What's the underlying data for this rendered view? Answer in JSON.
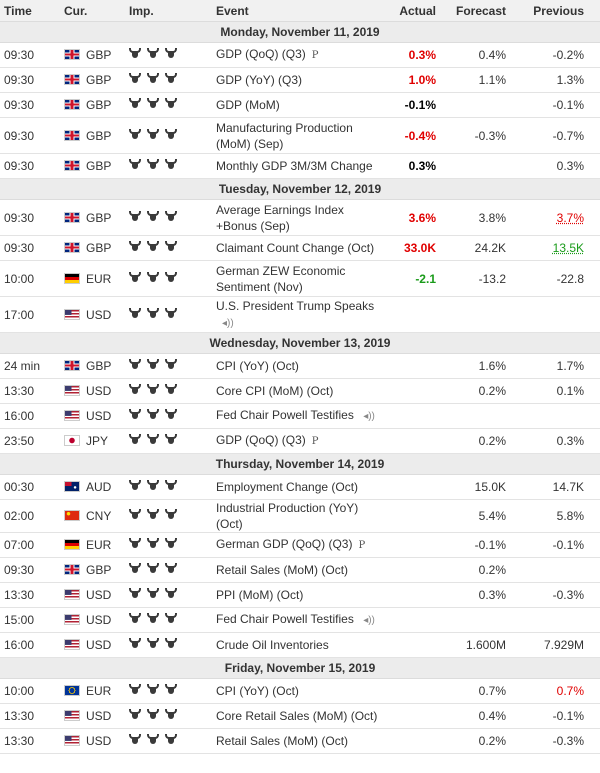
{
  "headers": {
    "time": "Time",
    "cur": "Cur.",
    "imp": "Imp.",
    "event": "Event",
    "actual": "Actual",
    "forecast": "Forecast",
    "previous": "Previous"
  },
  "days": [
    {
      "label": "Monday, November 11, 2019",
      "rows": [
        {
          "time": "09:30",
          "flag": "gb",
          "cur": "GBP",
          "event": "GDP (QoQ) (Q3)",
          "marker": "P",
          "actual": "0.3%",
          "actual_color": "red",
          "forecast": "0.4%",
          "previous": "-0.2%",
          "prev_style": ""
        },
        {
          "time": "09:30",
          "flag": "gb",
          "cur": "GBP",
          "event": "GDP (YoY) (Q3)",
          "marker": "",
          "actual": "1.0%",
          "actual_color": "red",
          "forecast": "1.1%",
          "previous": "1.3%",
          "prev_style": ""
        },
        {
          "time": "09:30",
          "flag": "gb",
          "cur": "GBP",
          "event": "GDP (MoM)",
          "marker": "",
          "actual": "-0.1%",
          "actual_color": "black",
          "forecast": "",
          "previous": "-0.1%",
          "prev_style": ""
        },
        {
          "time": "09:30",
          "flag": "gb",
          "cur": "GBP",
          "event": "Manufacturing Production (MoM) (Sep)",
          "marker": "",
          "actual": "-0.4%",
          "actual_color": "red",
          "forecast": "-0.3%",
          "previous": "-0.7%",
          "prev_style": "",
          "tall": true
        },
        {
          "time": "09:30",
          "flag": "gb",
          "cur": "GBP",
          "event": "Monthly GDP 3M/3M Change",
          "marker": "",
          "actual": "0.3%",
          "actual_color": "black",
          "forecast": "",
          "previous": "0.3%",
          "prev_style": ""
        }
      ]
    },
    {
      "label": "Tuesday, November 12, 2019",
      "rows": [
        {
          "time": "09:30",
          "flag": "gb",
          "cur": "GBP",
          "event": "Average Earnings Index +Bonus (Sep)",
          "marker": "",
          "actual": "3.6%",
          "actual_color": "red",
          "forecast": "3.8%",
          "previous": "3.7%",
          "prev_style": "u-red",
          "tall": true
        },
        {
          "time": "09:30",
          "flag": "gb",
          "cur": "GBP",
          "event": "Claimant Count Change (Oct)",
          "marker": "",
          "actual": "33.0K",
          "actual_color": "red",
          "forecast": "24.2K",
          "previous": "13.5K",
          "prev_style": "u-green"
        },
        {
          "time": "10:00",
          "flag": "de",
          "cur": "EUR",
          "event": "German ZEW Economic Sentiment (Nov)",
          "marker": "",
          "actual": "-2.1",
          "actual_color": "green",
          "forecast": "-13.2",
          "previous": "-22.8",
          "prev_style": "",
          "tall": true
        },
        {
          "time": "17:00",
          "flag": "us",
          "cur": "USD",
          "event": "U.S. President Trump Speaks",
          "marker": "speech",
          "actual": "",
          "actual_color": "black",
          "forecast": "",
          "previous": "",
          "prev_style": "",
          "tall": true
        }
      ]
    },
    {
      "label": "Wednesday, November 13, 2019",
      "rows": [
        {
          "time": "24 min",
          "flag": "gb",
          "cur": "GBP",
          "event": "CPI (YoY) (Oct)",
          "marker": "",
          "actual": "",
          "actual_color": "black",
          "forecast": "1.6%",
          "previous": "1.7%",
          "prev_style": ""
        },
        {
          "time": "13:30",
          "flag": "us",
          "cur": "USD",
          "event": "Core CPI (MoM) (Oct)",
          "marker": "",
          "actual": "",
          "actual_color": "black",
          "forecast": "0.2%",
          "previous": "0.1%",
          "prev_style": ""
        },
        {
          "time": "16:00",
          "flag": "us",
          "cur": "USD",
          "event": "Fed Chair Powell Testifies",
          "marker": "speech",
          "actual": "",
          "actual_color": "black",
          "forecast": "",
          "previous": "",
          "prev_style": ""
        },
        {
          "time": "23:50",
          "flag": "jp",
          "cur": "JPY",
          "event": "GDP (QoQ) (Q3)",
          "marker": "P",
          "actual": "",
          "actual_color": "black",
          "forecast": "0.2%",
          "previous": "0.3%",
          "prev_style": ""
        }
      ]
    },
    {
      "label": "Thursday, November 14, 2019",
      "rows": [
        {
          "time": "00:30",
          "flag": "au",
          "cur": "AUD",
          "event": "Employment Change (Oct)",
          "marker": "",
          "actual": "",
          "actual_color": "black",
          "forecast": "15.0K",
          "previous": "14.7K",
          "prev_style": ""
        },
        {
          "time": "02:00",
          "flag": "cn",
          "cur": "CNY",
          "event": "Industrial Production (YoY) (Oct)",
          "marker": "",
          "actual": "",
          "actual_color": "black",
          "forecast": "5.4%",
          "previous": "5.8%",
          "prev_style": ""
        },
        {
          "time": "07:00",
          "flag": "de",
          "cur": "EUR",
          "event": "German GDP (QoQ) (Q3)",
          "marker": "P",
          "actual": "",
          "actual_color": "black",
          "forecast": "-0.1%",
          "previous": "-0.1%",
          "prev_style": ""
        },
        {
          "time": "09:30",
          "flag": "gb",
          "cur": "GBP",
          "event": "Retail Sales (MoM) (Oct)",
          "marker": "",
          "actual": "",
          "actual_color": "black",
          "forecast": "0.2%",
          "previous": "",
          "prev_style": ""
        },
        {
          "time": "13:30",
          "flag": "us",
          "cur": "USD",
          "event": "PPI (MoM) (Oct)",
          "marker": "",
          "actual": "",
          "actual_color": "black",
          "forecast": "0.3%",
          "previous": "-0.3%",
          "prev_style": ""
        },
        {
          "time": "15:00",
          "flag": "us",
          "cur": "USD",
          "event": "Fed Chair Powell Testifies",
          "marker": "speech",
          "actual": "",
          "actual_color": "black",
          "forecast": "",
          "previous": "",
          "prev_style": ""
        },
        {
          "time": "16:00",
          "flag": "us",
          "cur": "USD",
          "event": "Crude Oil Inventories",
          "marker": "",
          "actual": "",
          "actual_color": "black",
          "forecast": "1.600M",
          "previous": "7.929M",
          "prev_style": ""
        }
      ]
    },
    {
      "label": "Friday, November 15, 2019",
      "rows": [
        {
          "time": "10:00",
          "flag": "eu",
          "cur": "EUR",
          "event": "CPI (YoY) (Oct)",
          "marker": "",
          "actual": "",
          "actual_color": "black",
          "forecast": "0.7%",
          "previous": "0.7%",
          "prev_style": "red"
        },
        {
          "time": "13:30",
          "flag": "us",
          "cur": "USD",
          "event": "Core Retail Sales (MoM) (Oct)",
          "marker": "",
          "actual": "",
          "actual_color": "black",
          "forecast": "0.4%",
          "previous": "-0.1%",
          "prev_style": ""
        },
        {
          "time": "13:30",
          "flag": "us",
          "cur": "USD",
          "event": "Retail Sales (MoM) (Oct)",
          "marker": "",
          "actual": "",
          "actual_color": "black",
          "forecast": "0.2%",
          "previous": "-0.3%",
          "prev_style": ""
        }
      ]
    }
  ],
  "importance_icon": "bull-icon",
  "importance_level": 3,
  "colors": {
    "red": "#e00000",
    "green": "#1a9b1a",
    "header_bg": "#f1f1f1",
    "day_bg": "#ececec"
  }
}
